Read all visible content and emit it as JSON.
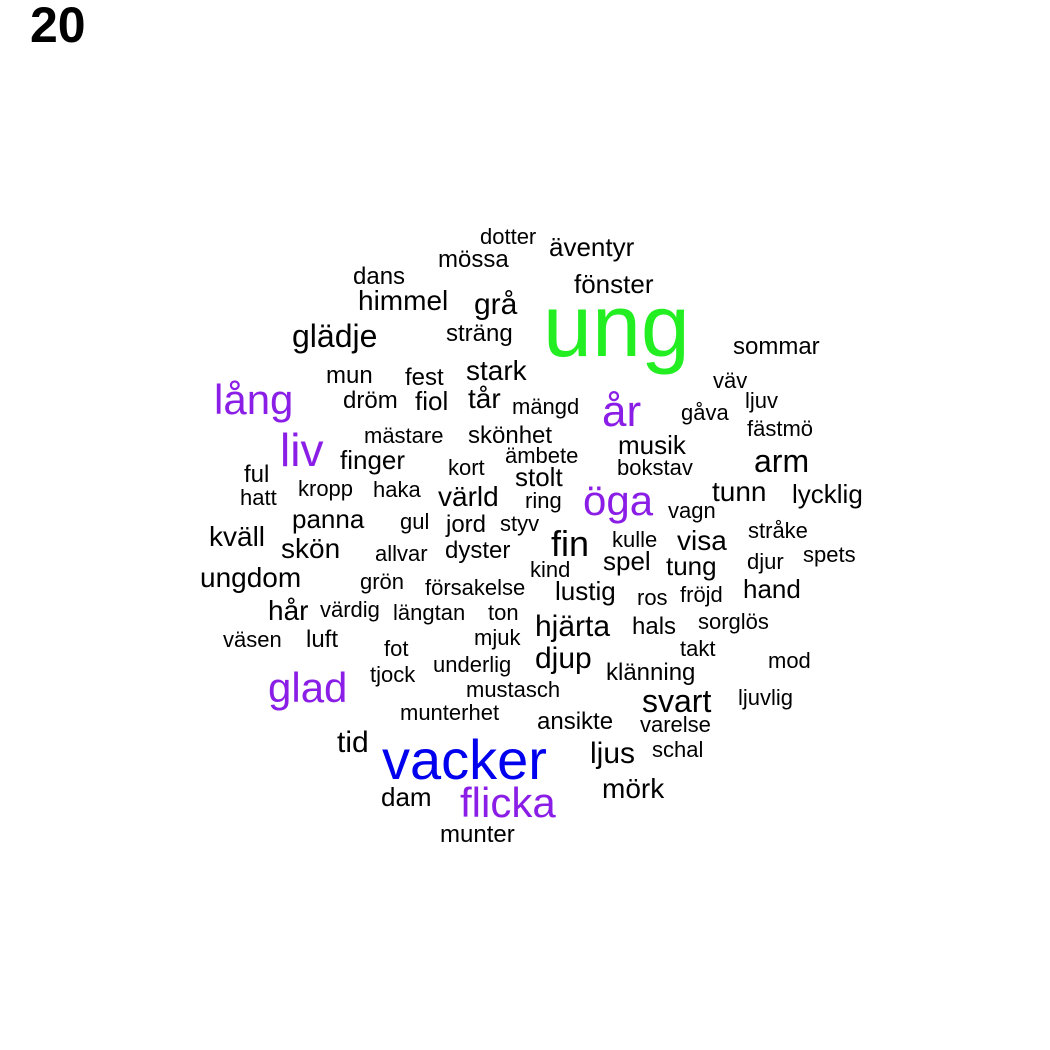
{
  "panel_label": "20",
  "chart_data": {
    "type": "wordcloud",
    "colors": {
      "top": "#22ee22",
      "second": "#0000ee",
      "third": "#8a1ee6",
      "rest": "#000000"
    },
    "words": [
      {
        "text": "ung",
        "tier": "top"
      },
      {
        "text": "vacker",
        "tier": "second"
      },
      {
        "text": "glad",
        "tier": "third"
      },
      {
        "text": "flicka",
        "tier": "third"
      },
      {
        "text": "liv",
        "tier": "third"
      },
      {
        "text": "lång",
        "tier": "third"
      },
      {
        "text": "år",
        "tier": "third"
      },
      {
        "text": "öga",
        "tier": "third"
      },
      {
        "text": "glädje",
        "tier": "rest"
      },
      {
        "text": "himmel",
        "tier": "rest"
      },
      {
        "text": "grå",
        "tier": "rest"
      },
      {
        "text": "fin",
        "tier": "rest"
      },
      {
        "text": "svart",
        "tier": "rest"
      },
      {
        "text": "arm",
        "tier": "rest"
      },
      {
        "text": "tid",
        "tier": "rest"
      },
      {
        "text": "ljus",
        "tier": "rest"
      },
      {
        "text": "mörk",
        "tier": "rest"
      },
      {
        "text": "hjärta",
        "tier": "rest"
      },
      {
        "text": "djup",
        "tier": "rest"
      },
      {
        "text": "dam",
        "tier": "rest"
      },
      {
        "text": "ungdom",
        "tier": "rest"
      },
      {
        "text": "kväll",
        "tier": "rest"
      },
      {
        "text": "skön",
        "tier": "rest"
      },
      {
        "text": "hår",
        "tier": "rest"
      },
      {
        "text": "tunn",
        "tier": "rest"
      },
      {
        "text": "visa",
        "tier": "rest"
      },
      {
        "text": "tung",
        "tier": "rest"
      },
      {
        "text": "spel",
        "tier": "rest"
      },
      {
        "text": "lustig",
        "tier": "rest"
      },
      {
        "text": "värld",
        "tier": "rest"
      },
      {
        "text": "stark",
        "tier": "rest"
      },
      {
        "text": "tår",
        "tier": "rest"
      },
      {
        "text": "musik",
        "tier": "rest"
      },
      {
        "text": "lycklig",
        "tier": "rest"
      },
      {
        "text": "finger",
        "tier": "rest"
      },
      {
        "text": "panna",
        "tier": "rest"
      },
      {
        "text": "hand",
        "tier": "rest"
      },
      {
        "text": "fönster",
        "tier": "rest"
      },
      {
        "text": "äventyr",
        "tier": "rest"
      },
      {
        "text": "sommar",
        "tier": "rest"
      },
      {
        "text": "fiol",
        "tier": "rest"
      },
      {
        "text": "munter",
        "tier": "rest"
      },
      {
        "text": "ansikte",
        "tier": "rest"
      },
      {
        "text": "dyster",
        "tier": "rest"
      },
      {
        "text": "ful",
        "tier": "rest"
      },
      {
        "text": "luft",
        "tier": "rest"
      },
      {
        "text": "stolt",
        "tier": "rest"
      },
      {
        "text": "jord",
        "tier": "rest"
      },
      {
        "text": "hals",
        "tier": "rest"
      },
      {
        "text": "klänning",
        "tier": "rest"
      },
      {
        "text": "mössa",
        "tier": "rest"
      },
      {
        "text": "dans",
        "tier": "rest"
      },
      {
        "text": "sträng",
        "tier": "rest"
      },
      {
        "text": "mun",
        "tier": "rest"
      },
      {
        "text": "fest",
        "tier": "rest"
      },
      {
        "text": "dröm",
        "tier": "rest"
      },
      {
        "text": "skönhet",
        "tier": "rest"
      },
      {
        "text": "mästare",
        "tier": "rest"
      },
      {
        "text": "kort",
        "tier": "rest"
      },
      {
        "text": "ämbete",
        "tier": "rest"
      },
      {
        "text": "bokstav",
        "tier": "rest"
      },
      {
        "text": "ljuv",
        "tier": "rest"
      },
      {
        "text": "gåva",
        "tier": "rest"
      },
      {
        "text": "fästmö",
        "tier": "rest"
      },
      {
        "text": "väv",
        "tier": "rest"
      },
      {
        "text": "mängd",
        "tier": "rest"
      },
      {
        "text": "dotter",
        "tier": "rest"
      },
      {
        "text": "kropp",
        "tier": "rest"
      },
      {
        "text": "haka",
        "tier": "rest"
      },
      {
        "text": "hatt",
        "tier": "rest"
      },
      {
        "text": "ring",
        "tier": "rest"
      },
      {
        "text": "vagn",
        "tier": "rest"
      },
      {
        "text": "gul",
        "tier": "rest"
      },
      {
        "text": "styv",
        "tier": "rest"
      },
      {
        "text": "kulle",
        "tier": "rest"
      },
      {
        "text": "stråke",
        "tier": "rest"
      },
      {
        "text": "allvar",
        "tier": "rest"
      },
      {
        "text": "kind",
        "tier": "rest"
      },
      {
        "text": "djur",
        "tier": "rest"
      },
      {
        "text": "spets",
        "tier": "rest"
      },
      {
        "text": "grön",
        "tier": "rest"
      },
      {
        "text": "försakelse",
        "tier": "rest"
      },
      {
        "text": "ros",
        "tier": "rest"
      },
      {
        "text": "fröjd",
        "tier": "rest"
      },
      {
        "text": "värdig",
        "tier": "rest"
      },
      {
        "text": "längtan",
        "tier": "rest"
      },
      {
        "text": "ton",
        "tier": "rest"
      },
      {
        "text": "sorglös",
        "tier": "rest"
      },
      {
        "text": "väsen",
        "tier": "rest"
      },
      {
        "text": "mjuk",
        "tier": "rest"
      },
      {
        "text": "fot",
        "tier": "rest"
      },
      {
        "text": "takt",
        "tier": "rest"
      },
      {
        "text": "tjock",
        "tier": "rest"
      },
      {
        "text": "underlig",
        "tier": "rest"
      },
      {
        "text": "mod",
        "tier": "rest"
      },
      {
        "text": "mustasch",
        "tier": "rest"
      },
      {
        "text": "ljuvlig",
        "tier": "rest"
      },
      {
        "text": "munterhet",
        "tier": "rest"
      },
      {
        "text": "varelse",
        "tier": "rest"
      },
      {
        "text": "schal",
        "tier": "rest"
      }
    ]
  }
}
